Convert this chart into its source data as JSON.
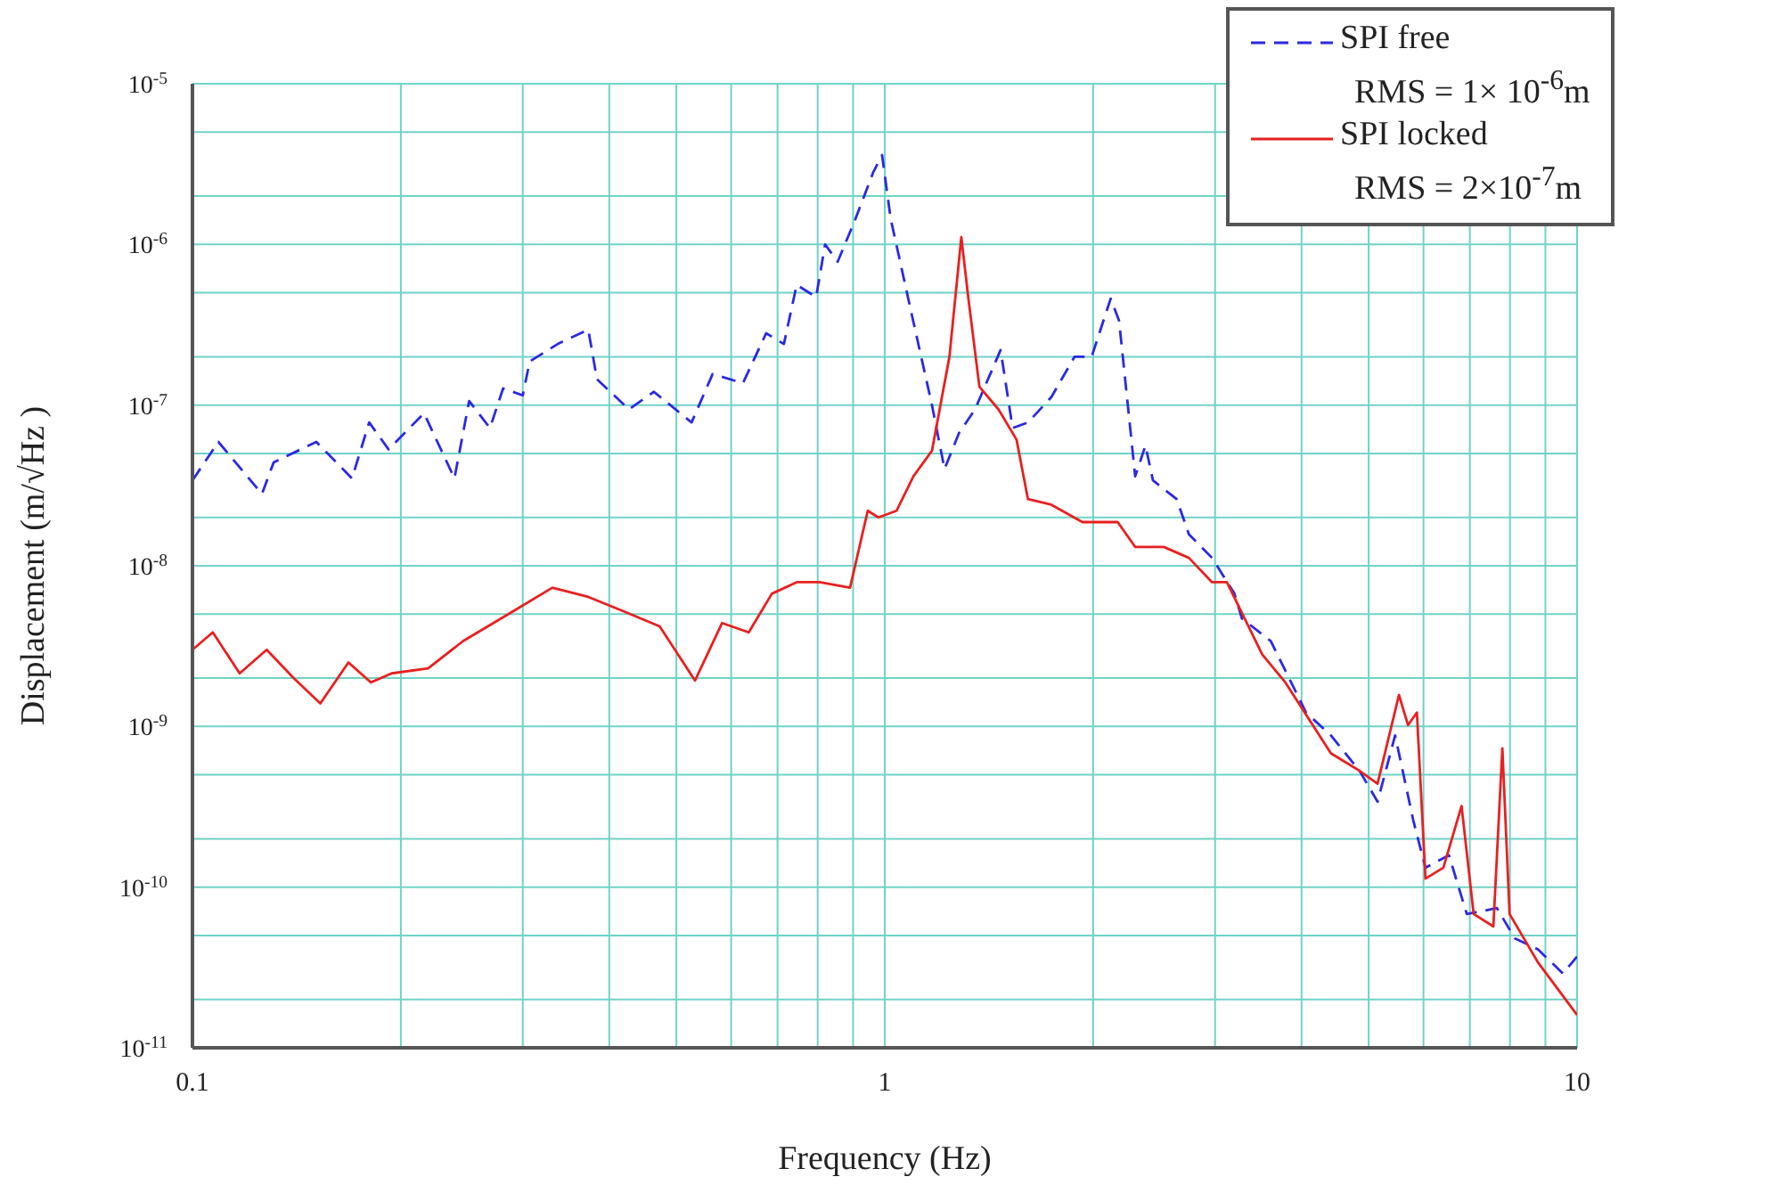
{
  "chart_data": {
    "type": "line",
    "xlabel": "Frequency (Hz)",
    "ylabel": "Displacement (m/√Hz )",
    "log": "xy",
    "grid": true,
    "legend": "top right",
    "xlim": [
      0.1,
      10
    ],
    "ylim": [
      1e-11,
      1e-05
    ],
    "xticks": [
      0.1,
      {
        "value": 0.2,
        "label": null
      },
      {
        "value": 0.3,
        "label": null
      },
      {
        "value": 0.4,
        "label": null
      },
      {
        "value": 0.5,
        "label": null
      },
      {
        "value": 0.6,
        "label": null
      },
      {
        "value": 0.7,
        "label": null
      },
      {
        "value": 0.8,
        "label": null
      },
      {
        "value": 0.9,
        "label": null
      },
      1,
      {
        "value": 2,
        "label": null
      },
      {
        "value": 3,
        "label": null
      },
      {
        "value": 4,
        "label": null
      },
      {
        "value": 5,
        "label": null
      },
      {
        "value": 6,
        "label": null
      },
      {
        "value": 7,
        "label": null
      },
      {
        "value": 8,
        "label": null
      },
      {
        "value": 9,
        "label": null
      },
      10
    ],
    "yticks": [
      {
        "value": 1e-11,
        "label": "10$^{-11}$"
      },
      {
        "value": 2e-11,
        "label": null
      },
      {
        "value": 5e-11,
        "label": null
      },
      {
        "value": 1e-10,
        "label": "10$^{-10}$"
      },
      {
        "value": 2e-10,
        "label": null
      },
      {
        "value": 5e-10,
        "label": null
      },
      {
        "value": 1e-09,
        "label": "10$^{-9}$"
      },
      {
        "value": 2e-09,
        "label": null
      },
      {
        "value": 5e-09,
        "label": null
      },
      {
        "value": 1e-08,
        "label": "10$^{-8}$"
      },
      {
        "value": 2e-08,
        "label": null
      },
      {
        "value": 5e-08,
        "label": null
      },
      {
        "value": 1e-07,
        "label": "10$^{-7}$"
      },
      {
        "value": 2e-07,
        "label": null
      },
      {
        "value": 5e-07,
        "label": null
      },
      {
        "value": 1e-06,
        "label": "10$^{-6}$"
      },
      {
        "value": 2e-06,
        "label": null
      },
      {
        "value": 5e-06,
        "label": null
      },
      {
        "value": 1e-05,
        "label": "10$^{-5}$"
      }
    ],
    "series": [
      {
        "name": "SPI free\nRMS =  1× 10$^{-6}$m",
        "color": "#2a2ae0",
        "line_style": "dashed",
        "x": [
          0.1,
          0.109,
          0.126,
          0.131,
          0.151,
          0.17,
          0.18,
          0.192,
          0.216,
          0.239,
          0.251,
          0.269,
          0.281,
          0.3,
          0.307,
          0.337,
          0.373,
          0.384,
          0.427,
          0.464,
          0.526,
          0.564,
          0.624,
          0.674,
          0.715,
          0.746,
          0.796,
          0.82,
          0.855,
          0.907,
          0.962,
          0.991,
          1.02,
          1.08,
          1.17,
          1.22,
          1.28,
          1.35,
          1.47,
          1.53,
          1.61,
          1.74,
          1.88,
          1.99,
          2.12,
          2.18,
          2.3,
          2.38,
          2.44,
          2.64,
          2.75,
          2.97,
          3.2,
          3.28,
          3.61,
          4.06,
          4.41,
          4.85,
          5.15,
          5.46,
          5.8,
          6.04,
          6.53,
          6.93,
          7.66,
          8.13,
          8.78,
          9.54,
          10
        ],
        "values": [
          3.4e-08,
          5.9e-08,
          2.8e-08,
          4.4e-08,
          5.9e-08,
          3.5e-08,
          7.8e-08,
          5.3e-08,
          8.9e-08,
          3.5e-08,
          1.06e-07,
          7.2e-08,
          1.27e-07,
          1.15e-07,
          1.87e-07,
          2.4e-07,
          2.95e-07,
          1.45e-07,
          9.4e-08,
          1.21e-07,
          7.8e-08,
          1.56e-07,
          1.37e-07,
          2.8e-07,
          2.4e-07,
          5.6e-07,
          4.7e-07,
          1e-06,
          7.8e-07,
          1.44e-06,
          2.8e-06,
          3.6e-06,
          1.44e-06,
          4.7e-07,
          1e-07,
          4e-08,
          6.7e-08,
          9.4e-08,
          2.2e-07,
          7.2e-08,
          7.8e-08,
          1.12e-07,
          2e-07,
          2e-07,
          4.6e-07,
          3.35e-07,
          3.6e-08,
          5.6e-08,
          3.4e-08,
          2.6e-08,
          1.57e-08,
          1.12e-08,
          6.7e-09,
          4.7e-09,
          3.4e-09,
          1.22e-09,
          8.8e-10,
          5.3e-10,
          3.4e-10,
          8.8e-10,
          2.6e-10,
          1.32e-10,
          1.58e-10,
          6.8e-11,
          7.4e-11,
          4.8e-11,
          4.1e-11,
          2.9e-11,
          3.7e-11
        ]
      },
      {
        "name": "SPI locked\nRMS = 2×10$^{-7}$m",
        "color": "#e82020",
        "line_style": "solid",
        "x": [
          0.1,
          0.107,
          0.117,
          0.128,
          0.14,
          0.153,
          0.168,
          0.181,
          0.194,
          0.219,
          0.246,
          0.286,
          0.331,
          0.373,
          0.42,
          0.473,
          0.532,
          0.582,
          0.636,
          0.687,
          0.746,
          0.805,
          0.891,
          0.945,
          0.979,
          1.04,
          1.1,
          1.17,
          1.24,
          1.29,
          1.32,
          1.37,
          1.46,
          1.55,
          1.61,
          1.74,
          1.93,
          2.17,
          2.3,
          2.53,
          2.75,
          2.97,
          3.12,
          3.51,
          3.79,
          4.41,
          4.85,
          5.15,
          5.53,
          5.7,
          5.87,
          6.04,
          6.41,
          6.81,
          7.09,
          7.57,
          7.8,
          7.99,
          8.78,
          10
        ],
        "values": [
          3e-09,
          3.85e-09,
          2.14e-09,
          3e-09,
          2e-09,
          1.39e-09,
          2.5e-09,
          1.88e-09,
          2.14e-09,
          2.3e-09,
          3.4e-09,
          5e-09,
          7.3e-09,
          6.4e-09,
          5.2e-09,
          4.2e-09,
          1.93e-09,
          4.4e-09,
          3.85e-09,
          6.7e-09,
          7.9e-09,
          7.9e-09,
          7.3e-09,
          2.2e-08,
          2e-08,
          2.2e-08,
          3.6e-08,
          5.2e-08,
          2e-07,
          1.11e-06,
          4.7e-07,
          1.3e-07,
          9.4e-08,
          6.1e-08,
          2.6e-08,
          2.4e-08,
          1.87e-08,
          1.87e-08,
          1.31e-08,
          1.31e-08,
          1.12e-08,
          7.9e-09,
          7.9e-09,
          2.8e-09,
          1.88e-09,
          6.8e-10,
          5.3e-10,
          4.4e-10,
          1.57e-09,
          1.02e-09,
          1.22e-09,
          1.13e-10,
          1.32e-10,
          3.2e-10,
          6.8e-11,
          5.7e-11,
          7.3e-10,
          6.8e-11,
          3.4e-11,
          1.6e-11
        ]
      }
    ]
  }
}
